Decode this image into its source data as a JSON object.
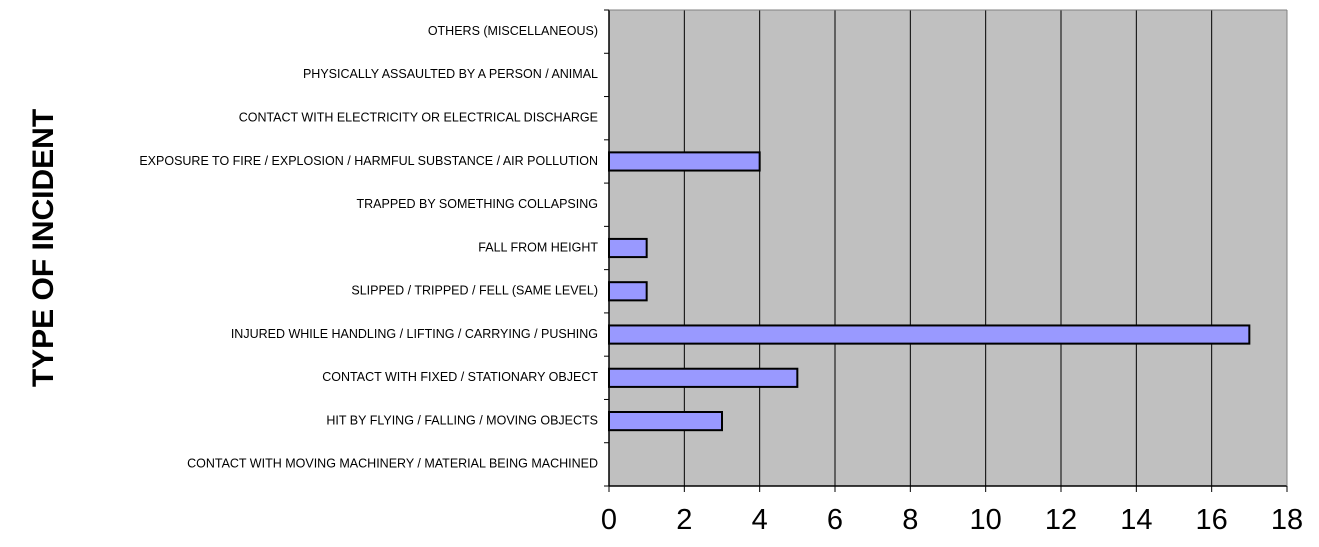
{
  "chart_data": {
    "type": "bar",
    "orientation": "horizontal",
    "ylabel": "TYPE OF INCIDENT",
    "xlabel": "",
    "categories": [
      "CONTACT WITH MOVING MACHINERY / MATERIAL BEING MACHINED",
      "HIT BY FLYING / FALLING / MOVING OBJECTS",
      "CONTACT WITH FIXED / STATIONARY OBJECT",
      "INJURED WHILE HANDLING / LIFTING / CARRYING / PUSHING",
      "SLIPPED / TRIPPED / FELL (SAME LEVEL)",
      "FALL FROM HEIGHT",
      "TRAPPED BY SOMETHING COLLAPSING",
      "EXPOSURE TO FIRE / EXPLOSION / HARMFUL SUBSTANCE / AIR POLLUTION",
      "CONTACT WITH ELECTRICITY OR ELECTRICAL DISCHARGE",
      "PHYSICALLY ASSAULTED BY A PERSON / ANIMAL",
      "OTHERS (MISCELLANEOUS)"
    ],
    "values": [
      0,
      3,
      5,
      17,
      1,
      1,
      0,
      4,
      0,
      0,
      0
    ],
    "xlim": [
      0,
      18
    ],
    "xticks": [
      "0",
      "2",
      "4",
      "6",
      "8",
      "10",
      "12",
      "14",
      "16",
      "18"
    ],
    "grid": true,
    "colors": {
      "bar_fill": "#9999ff",
      "bar_stroke": "#000000",
      "plot_background": "#c0c0c0",
      "gridline": "#000000"
    }
  }
}
